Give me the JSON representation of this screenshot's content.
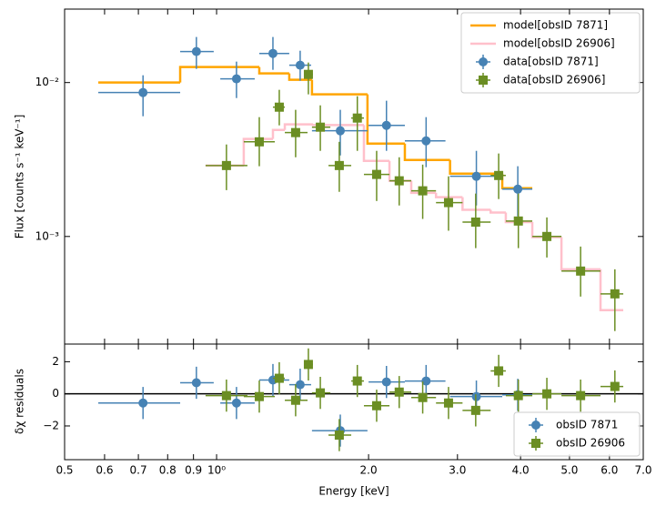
{
  "chart_data": [
    {
      "type": "errorbar-step",
      "ylabel": "Flux [counts s⁻¹ keV⁻¹]",
      "xlog": true,
      "ylog": true,
      "xlim": [
        0.5,
        7.0
      ],
      "ylim": [
        0.0002,
        0.03
      ],
      "yticks": [
        {
          "value": 0.01,
          "label": "10⁻²"
        },
        {
          "value": 0.001,
          "label": "10⁻³"
        }
      ],
      "legend": "upper right",
      "models": [
        {
          "name": "model[obsID 7871]",
          "color": "#ffa500",
          "edges": [
            0.583,
            0.847,
            1.215,
            1.393,
            1.545,
            1.99,
            2.36,
            2.9,
            3.68,
            4.22
          ],
          "values": [
            0.01,
            0.01262,
            0.01146,
            0.01042,
            0.00838,
            0.00401,
            0.00314,
            0.00256,
            0.00206
          ]
        },
        {
          "name": "model[obsID 26906]",
          "color": "#ffc0cb",
          "edges": [
            0.951,
            1.132,
            1.293,
            1.365,
            1.552,
            1.958,
            2.2,
            2.43,
            2.72,
            3.07,
            3.49,
            3.74,
            4.22,
            4.82,
            5.76,
            6.39
          ],
          "values": [
            0.00289,
            0.0043,
            0.00492,
            0.00535,
            0.0053,
            0.0031,
            0.0023,
            0.00192,
            0.0018,
            0.00149,
            0.00143,
            0.00124,
            0.00099,
            0.000612,
            0.000332
          ]
        }
      ],
      "series": [
        {
          "name": "data[obsID 7871]",
          "color": "#4682b4",
          "marker": "circle",
          "x": [
            0.715,
            0.912,
            1.095,
            1.293,
            1.464,
            1.758,
            2.17,
            2.6,
            3.27,
            3.95
          ],
          "x_lower": [
            0.583,
            0.847,
            1.017,
            1.215,
            1.393,
            1.545,
            2.0,
            2.36,
            2.9,
            3.68
          ],
          "x_upper": [
            0.847,
            0.987,
            1.19,
            1.393,
            1.539,
            1.99,
            2.36,
            2.84,
            3.68,
            4.22
          ],
          "values": [
            0.00861,
            0.0159,
            0.01057,
            0.01546,
            0.01296,
            0.00486,
            0.00527,
            0.00418,
            0.00246,
            0.00203
          ],
          "y_lower": [
            0.00604,
            0.01227,
            0.00793,
            0.0121,
            0.01028,
            0.00336,
            0.0036,
            0.00282,
            0.00159,
            0.00135
          ],
          "y_upper": [
            0.01115,
            0.01977,
            0.01368,
            0.01977,
            0.0161,
            0.00665,
            0.00762,
            0.00596,
            0.0036,
            0.00286
          ]
        },
        {
          "name": "data[obsID 26906]",
          "color": "#6b8e23",
          "marker": "square",
          "x": [
            1.046,
            1.215,
            1.331,
            1.434,
            1.52,
            1.605,
            1.75,
            1.9,
            2.075,
            2.3,
            2.56,
            2.88,
            3.26,
            3.62,
            3.96,
            4.51,
            5.26,
            6.15
          ],
          "x_lower": [
            0.951,
            1.132,
            1.293,
            1.365,
            1.495,
            1.545,
            1.666,
            1.848,
            1.958,
            2.2,
            2.43,
            2.72,
            3.07,
            3.49,
            3.74,
            4.22,
            4.82,
            5.76
          ],
          "x_upper": [
            1.151,
            1.304,
            1.365,
            1.514,
            1.552,
            1.68,
            1.848,
            1.958,
            2.2,
            2.43,
            2.72,
            3.07,
            3.49,
            3.74,
            4.22,
            4.82,
            5.76,
            6.39
          ],
          "values": [
            0.00289,
            0.00412,
            0.00692,
            0.00473,
            0.0113,
            0.00513,
            0.00289,
            0.00588,
            0.00253,
            0.0023,
            0.00198,
            0.00166,
            0.00124,
            0.00249,
            0.00126,
            0.001,
            0.000596,
            0.000424
          ],
          "y_lower": [
            0.002,
            0.00286,
            0.00527,
            0.00327,
            0.00838,
            0.0036,
            0.00195,
            0.0036,
            0.0017,
            0.00159,
            0.0013,
            0.00109,
            0.00084,
            0.00175,
            0.00084,
            0.00073,
            0.000407,
            0.000243
          ],
          "y_upper": [
            0.00396,
            0.00596,
            0.00897,
            0.00665,
            0.01349,
            0.00711,
            0.00412,
            0.00815,
            0.0036,
            0.00327,
            0.00293,
            0.00246,
            0.0019,
            0.00346,
            0.0019,
            0.00133,
            0.00086,
            0.000612
          ]
        }
      ]
    },
    {
      "type": "residuals",
      "xlabel": "Energy [keV]",
      "ylabel": "δχ residuals",
      "xlog": true,
      "xlim": [
        0.5,
        7.0
      ],
      "ylim": [
        -4.1,
        3.1
      ],
      "xticks": [
        0.5,
        0.6,
        0.7,
        0.8,
        0.9,
        {
          "value": 1,
          "label": "10⁰"
        },
        {
          "value": 2,
          "label": "2.0"
        },
        {
          "value": 3,
          "label": "3.0"
        },
        {
          "value": 4,
          "label": "4.0"
        },
        {
          "value": 5,
          "label": "5.0"
        },
        {
          "value": 6,
          "label": "6.0"
        },
        {
          "value": 7,
          "label": "7.0"
        }
      ],
      "yticks": [
        {
          "value": -2,
          "label": "−2"
        },
        0,
        2
      ],
      "hline": 0,
      "legend": "lower right",
      "series": [
        {
          "name": "obsID 7871",
          "color": "#4682b4",
          "marker": "circle",
          "values": [
            -0.57,
            0.69,
            -0.57,
            0.86,
            0.57,
            -2.29,
            0.74,
            0.8,
            -0.17,
            -0.06
          ],
          "yerr": [
            1,
            1,
            1,
            1,
            1,
            1,
            1,
            1,
            1,
            1
          ]
        },
        {
          "name": "obsID 26906",
          "color": "#6b8e23",
          "marker": "square",
          "values": [
            -0.11,
            -0.17,
            0.97,
            -0.4,
            1.83,
            0.06,
            -2.57,
            0.8,
            -0.74,
            0.11,
            -0.23,
            -0.57,
            -1.03,
            1.43,
            -0.11,
            0,
            -0.11,
            0.46
          ],
          "yerr": [
            1,
            1,
            1,
            1,
            1,
            1,
            1,
            1,
            1,
            1,
            1,
            1,
            1,
            1,
            1,
            1,
            1,
            1
          ]
        }
      ]
    }
  ]
}
